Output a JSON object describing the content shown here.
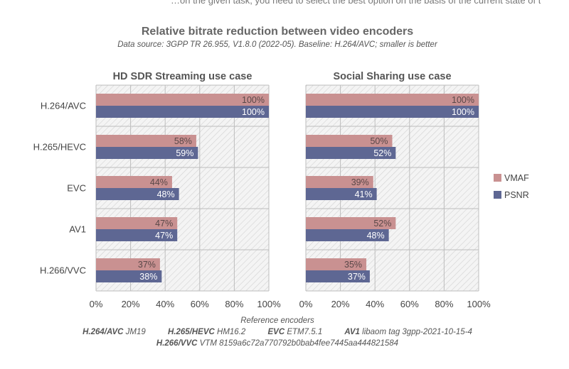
{
  "cropped_text": "…on the given task, you need to select the best option on the basis of the current state of the input.",
  "colors": {
    "vmaf": "#c99191",
    "psnr": "#5e6793",
    "grid": "#bdbdbd",
    "plot_bg_hatch": "#d2d2d2"
  },
  "chart_data": {
    "type": "bar",
    "orientation": "horizontal",
    "title": "Relative bitrate reduction between video encoders",
    "subtitle": "Data source: 3GPP TR 26.955, V1.8.0 (2022-05).  Baseline: H.264/AVC; smaller is better",
    "xlabel": "",
    "xlim": [
      0,
      100
    ],
    "xticks": [
      "0%",
      "20%",
      "40%",
      "60%",
      "80%",
      "100%"
    ],
    "categories": [
      "H.264/AVC",
      "H.265/HEVC",
      "EVC",
      "AV1",
      "H.266/VVC"
    ],
    "legend": {
      "position": "right",
      "entries": [
        "VMAF",
        "PSNR"
      ]
    },
    "grid": true,
    "panels": [
      {
        "title": "HD SDR Streaming use case",
        "series": [
          {
            "name": "VMAF",
            "values": [
              100,
              58,
              44,
              47,
              37
            ]
          },
          {
            "name": "PSNR",
            "values": [
              100,
              59,
              48,
              47,
              38
            ]
          }
        ]
      },
      {
        "title": "Social Sharing use case",
        "series": [
          {
            "name": "VMAF",
            "values": [
              100,
              50,
              39,
              52,
              35
            ]
          },
          {
            "name": "PSNR",
            "values": [
              100,
              52,
              41,
              48,
              37
            ]
          }
        ]
      }
    ]
  },
  "footer": {
    "heading": "Reference encoders",
    "encoders": [
      {
        "name": "H.264/AVC",
        "version": "JM19"
      },
      {
        "name": "H.265/HEVC",
        "version": "HM16.2"
      },
      {
        "name": "EVC",
        "version": "ETM7.5.1"
      },
      {
        "name": "AV1",
        "version": "libaom tag 3gpp-2021-10-15-4"
      },
      {
        "name": "H.266/VVC",
        "version": "VTM 8159a6c72a770792b0bab4fee7445aa444821584"
      }
    ]
  }
}
